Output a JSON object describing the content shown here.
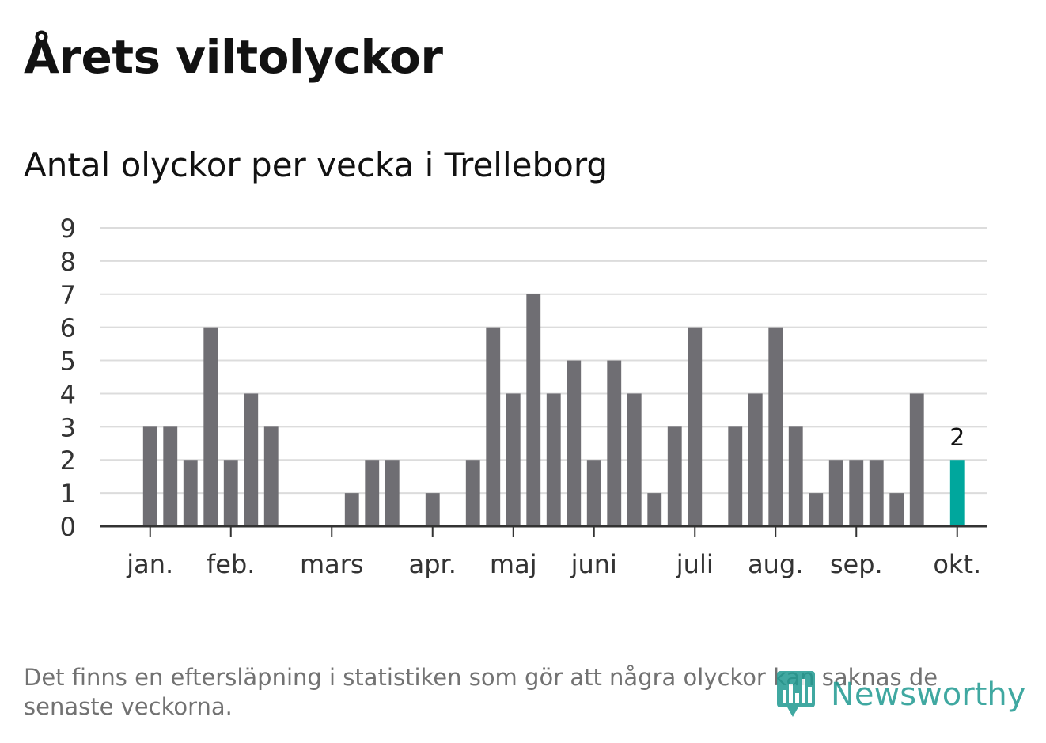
{
  "title": "Årets viltolyckor",
  "chart_data": {
    "type": "bar",
    "title": "Antal olyckor per vecka i Trelleborg",
    "xlabel": "",
    "ylabel": "",
    "ylim": [
      0,
      9
    ],
    "yticks": [
      "0",
      "1",
      "2",
      "3",
      "4",
      "5",
      "6",
      "7",
      "8",
      "9"
    ],
    "month_labels": [
      "jan.",
      "feb.",
      "mars",
      "apr.",
      "maj",
      "juni",
      "juli",
      "aug.",
      "sep.",
      "okt."
    ],
    "month_tick_weeks": [
      3,
      7,
      12,
      17,
      21,
      25,
      30,
      34,
      38,
      43
    ],
    "weeks": [
      1,
      2,
      3,
      4,
      5,
      6,
      7,
      8,
      9,
      10,
      11,
      12,
      13,
      14,
      15,
      16,
      17,
      18,
      19,
      20,
      21,
      22,
      23,
      24,
      25,
      26,
      27,
      28,
      29,
      30,
      31,
      32,
      33,
      34,
      35,
      36,
      37,
      38,
      39,
      40,
      41,
      42,
      43,
      44
    ],
    "values": [
      0,
      0,
      3,
      3,
      2,
      6,
      2,
      4,
      3,
      0,
      0,
      0,
      1,
      2,
      2,
      0,
      1,
      0,
      2,
      6,
      4,
      7,
      4,
      5,
      2,
      5,
      4,
      1,
      3,
      6,
      0,
      3,
      4,
      6,
      3,
      1,
      2,
      2,
      2,
      1,
      4,
      0,
      2,
      0
    ],
    "highlight_index": 42,
    "highlight_label": "2",
    "colors": {
      "bar": "#6f6e73",
      "highlight": "#00a79d",
      "grid": "#dcdcdc",
      "axis": "#333333",
      "text": "#333333"
    }
  },
  "footnote": "Det finns en eftersläpning i statistiken som gör att några olyckor kan saknas de senaste veckorna.",
  "brand": {
    "name": "Newsworthy",
    "icon": "newsworthy-logo-icon",
    "color": "#1f9a91"
  }
}
